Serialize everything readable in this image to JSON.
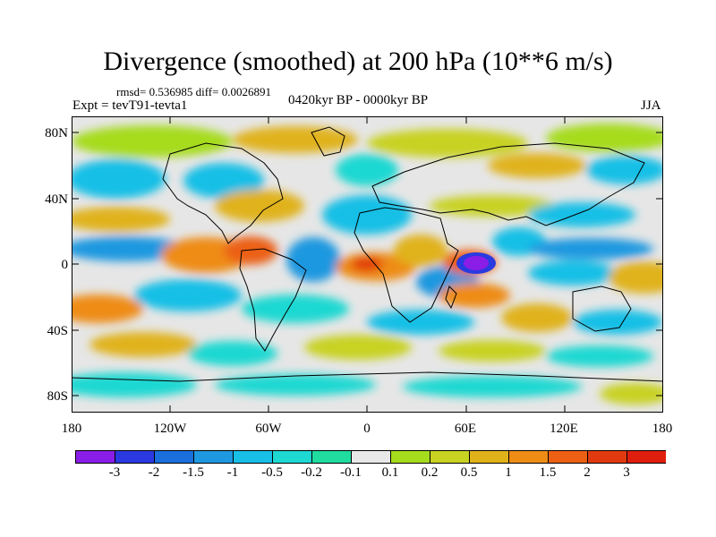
{
  "title": "Divergence (smoothed) at 200 hPa (10**6 m/s)",
  "stats": "rmsd= 0.536985 diff= 0.0026891",
  "experiment": "Expt = tevT91-tevta1",
  "period": "0420kyr BP - 0000kyr BP",
  "season": "JJA",
  "lat_labels": [
    "80N",
    "40N",
    "0",
    "40S",
    "80S"
  ],
  "lon_labels": [
    "180",
    "120W",
    "60W",
    "0",
    "60E",
    "120E",
    "180"
  ],
  "colorbar": {
    "labels": [
      "-3",
      "-2",
      "-1.5",
      "-1",
      "-0.5",
      "-0.2",
      "-0.1",
      "0.1",
      "0.2",
      "0.5",
      "1",
      "1.5",
      "2",
      "3"
    ],
    "colors": [
      "#8a1ee6",
      "#2a3ae0",
      "#1a6fdc",
      "#1e98e0",
      "#18bfe6",
      "#1ed8d2",
      "#20dc9e",
      "#e8e8e8",
      "#a6dc1e",
      "#c8d222",
      "#e0b21a",
      "#ee8c16",
      "#ec6014",
      "#e23a10",
      "#e01e0e"
    ]
  }
}
